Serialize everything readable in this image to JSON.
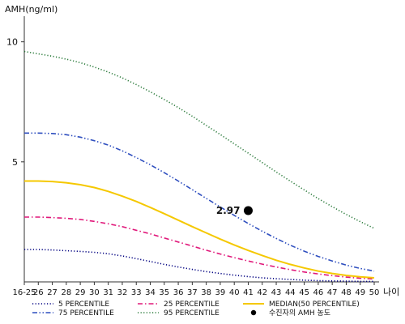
{
  "chart_data": {
    "type": "line",
    "title": "",
    "ylabel": "AMH(ng/ml)",
    "xlabel": "나이",
    "ylim": [
      0,
      11
    ],
    "yticks": [
      5,
      10
    ],
    "grid": false,
    "legend_position": "bottom",
    "categories": [
      "16-25",
      "26",
      "27",
      "28",
      "29",
      "30",
      "31",
      "32",
      "33",
      "34",
      "35",
      "36",
      "37",
      "38",
      "39",
      "40",
      "41",
      "42",
      "43",
      "44",
      "45",
      "46",
      "47",
      "48",
      "49",
      "50"
    ],
    "series": [
      {
        "name": "5 PERCENTILE",
        "color": "#000080",
        "dash": "dot",
        "values": [
          1.35,
          1.35,
          1.33,
          1.3,
          1.27,
          1.23,
          1.17,
          1.08,
          0.97,
          0.85,
          0.73,
          0.62,
          0.52,
          0.43,
          0.35,
          0.28,
          0.22,
          0.17,
          0.13,
          0.1,
          0.07,
          0.05,
          0.04,
          0.03,
          0.02,
          0.02
        ]
      },
      {
        "name": "25 PERCENTILE",
        "color": "#e0187a",
        "dash": "dashdot",
        "values": [
          2.7,
          2.7,
          2.68,
          2.65,
          2.6,
          2.52,
          2.42,
          2.3,
          2.15,
          2.0,
          1.83,
          1.66,
          1.49,
          1.32,
          1.16,
          1.01,
          0.87,
          0.74,
          0.62,
          0.51,
          0.41,
          0.33,
          0.26,
          0.2,
          0.15,
          0.12
        ]
      },
      {
        "name": "MEDIAN(50 PERCENTILE)",
        "color": "#f5c800",
        "dash": "solid",
        "values": [
          4.2,
          4.2,
          4.18,
          4.13,
          4.05,
          3.93,
          3.77,
          3.57,
          3.35,
          3.1,
          2.84,
          2.57,
          2.3,
          2.04,
          1.78,
          1.54,
          1.31,
          1.1,
          0.9,
          0.73,
          0.58,
          0.45,
          0.35,
          0.27,
          0.21,
          0.17
        ]
      },
      {
        "name": "75 PERCENTILE",
        "color": "#2f4fbf",
        "dash": "dashdotdot",
        "values": [
          6.2,
          6.2,
          6.18,
          6.13,
          6.03,
          5.88,
          5.7,
          5.46,
          5.18,
          4.88,
          4.55,
          4.2,
          3.84,
          3.48,
          3.12,
          2.77,
          2.43,
          2.11,
          1.81,
          1.53,
          1.28,
          1.06,
          0.87,
          0.7,
          0.56,
          0.45
        ]
      },
      {
        "name": "95 PERCENTILE",
        "color": "#2a7a3a",
        "dash": "dot",
        "values": [
          9.6,
          9.5,
          9.4,
          9.28,
          9.13,
          8.95,
          8.74,
          8.5,
          8.22,
          7.92,
          7.6,
          7.26,
          6.9,
          6.52,
          6.14,
          5.75,
          5.36,
          4.97,
          4.58,
          4.2,
          3.83,
          3.47,
          3.13,
          2.81,
          2.51,
          2.23
        ]
      }
    ],
    "marker": {
      "label": "수진자의 AMH 농도",
      "x": "41",
      "y": 2.97,
      "value_label": "2.97",
      "color": "#000000"
    }
  }
}
